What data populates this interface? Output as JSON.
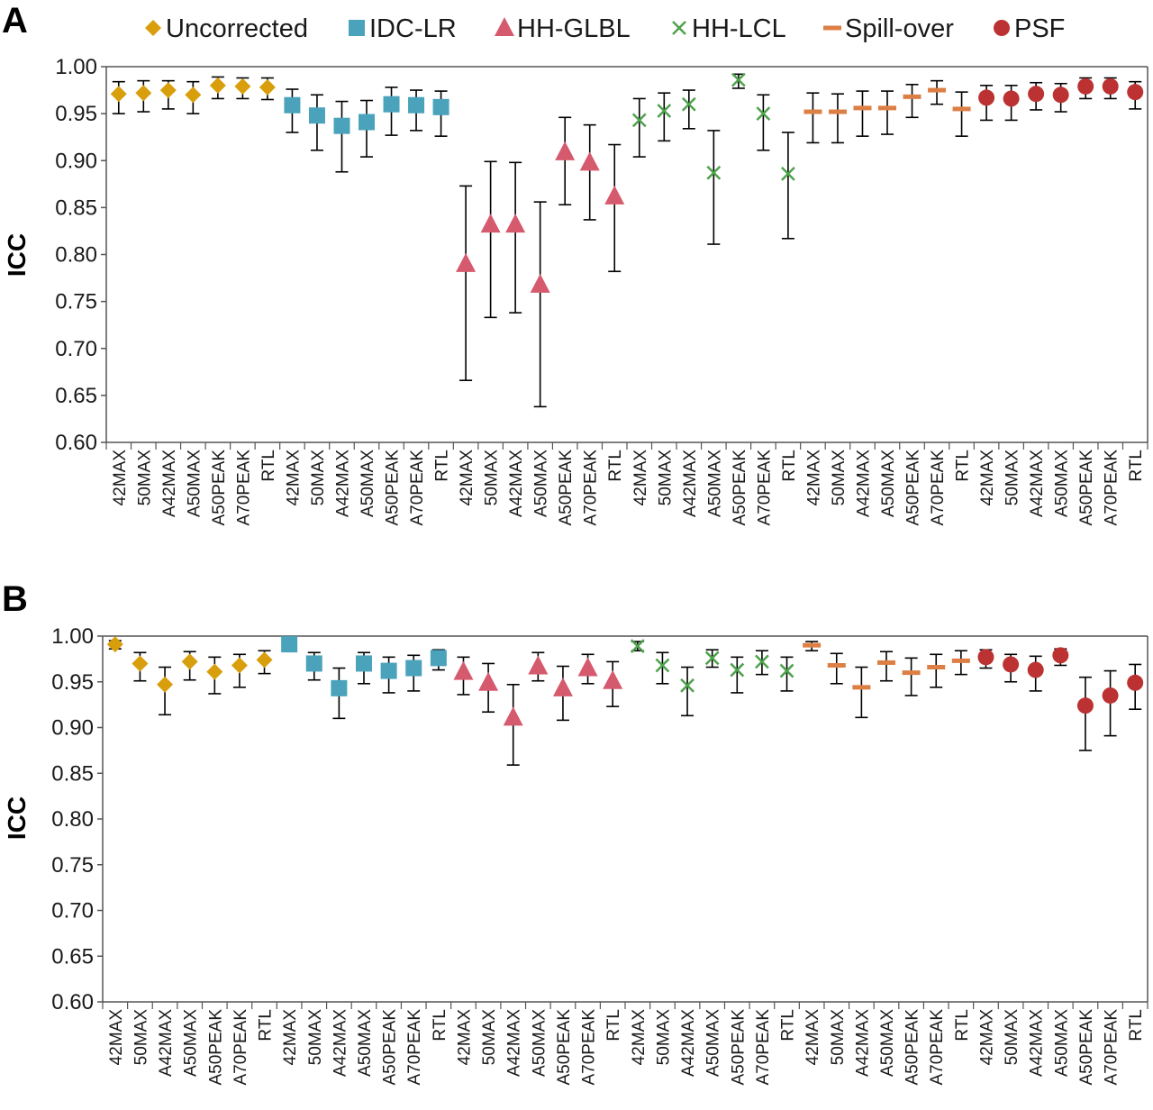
{
  "colors": {
    "Uncorrected": "#d89e0c",
    "IDC-LR": "#4aa3bb",
    "HH-GLBL": "#d65a6e",
    "HH-LCL": "#4ea24c",
    "Spill-over": "#dd7f45",
    "PSF": "#bc3232",
    "errorbar": "#000000",
    "axis": "#555555"
  },
  "legend": [
    {
      "name": "Uncorrected",
      "marker": "diamond",
      "color_key": "Uncorrected"
    },
    {
      "name": "IDC-LR",
      "marker": "square",
      "color_key": "IDC-LR"
    },
    {
      "name": "HH-GLBL",
      "marker": "triangle",
      "color_key": "HH-GLBL"
    },
    {
      "name": "HH-LCL",
      "marker": "x",
      "color_key": "HH-LCL"
    },
    {
      "name": "Spill-over",
      "marker": "dash",
      "color_key": "Spill-over"
    },
    {
      "name": "PSF",
      "marker": "circle",
      "color_key": "PSF"
    }
  ],
  "chart_data": [
    {
      "panel": "A",
      "type": "scatter",
      "ylabel": "ICC",
      "ylim": [
        0.6,
        1.0
      ],
      "yticks": [
        "0.60",
        "0.65",
        "0.70",
        "0.75",
        "0.80",
        "0.85",
        "0.90",
        "0.95",
        "1.00"
      ],
      "categories": [
        "42MAX",
        "50MAX",
        "A42MAX",
        "A50MAX",
        "A50PEAK",
        "A70PEAK",
        "RTL"
      ],
      "series": [
        {
          "name": "Uncorrected",
          "values": [
            0.971,
            0.972,
            0.975,
            0.97,
            0.98,
            0.979,
            0.978
          ],
          "lower": [
            0.95,
            0.952,
            0.955,
            0.95,
            0.966,
            0.966,
            0.965
          ],
          "upper": [
            0.984,
            0.985,
            0.985,
            0.984,
            0.989,
            0.988,
            0.988
          ]
        },
        {
          "name": "IDC-LR",
          "values": [
            0.959,
            0.948,
            0.937,
            0.941,
            0.96,
            0.959,
            0.957
          ],
          "lower": [
            0.93,
            0.911,
            0.888,
            0.904,
            0.927,
            0.932,
            0.926
          ],
          "upper": [
            0.976,
            0.97,
            0.963,
            0.964,
            0.978,
            0.975,
            0.974
          ]
        },
        {
          "name": "HH-GLBL",
          "values": [
            0.79,
            0.832,
            0.832,
            0.768,
            0.909,
            0.898,
            0.862
          ],
          "lower": [
            0.666,
            0.733,
            0.738,
            0.638,
            0.853,
            0.837,
            0.782
          ],
          "upper": [
            0.873,
            0.899,
            0.898,
            0.856,
            0.946,
            0.938,
            0.917
          ]
        },
        {
          "name": "HH-LCL",
          "values": [
            0.943,
            0.953,
            0.96,
            0.887,
            0.986,
            0.95,
            0.886
          ],
          "lower": [
            0.904,
            0.921,
            0.934,
            0.811,
            0.977,
            0.911,
            0.817
          ],
          "upper": [
            0.966,
            0.972,
            0.975,
            0.932,
            0.992,
            0.97,
            0.93
          ]
        },
        {
          "name": "Spill-over",
          "values": [
            0.952,
            0.952,
            0.956,
            0.956,
            0.968,
            0.975,
            0.955
          ],
          "lower": [
            0.919,
            0.919,
            0.926,
            0.928,
            0.946,
            0.96,
            0.926
          ],
          "upper": [
            0.972,
            0.971,
            0.974,
            0.974,
            0.981,
            0.985,
            0.973
          ]
        },
        {
          "name": "PSF",
          "values": [
            0.967,
            0.966,
            0.971,
            0.97,
            0.979,
            0.979,
            0.973
          ],
          "lower": [
            0.943,
            0.943,
            0.954,
            0.952,
            0.966,
            0.966,
            0.955
          ],
          "upper": [
            0.98,
            0.98,
            0.983,
            0.982,
            0.988,
            0.988,
            0.984
          ]
        }
      ]
    },
    {
      "panel": "B",
      "type": "scatter",
      "ylabel": "ICC",
      "ylim": [
        0.6,
        1.0
      ],
      "yticks": [
        "0.60",
        "0.65",
        "0.70",
        "0.75",
        "0.80",
        "0.85",
        "0.90",
        "0.95",
        "1.00"
      ],
      "categories": [
        "42MAX",
        "50MAX",
        "A42MAX",
        "A50MAX",
        "A50PEAK",
        "A70PEAK",
        "RTL"
      ],
      "series": [
        {
          "name": "Uncorrected",
          "values": [
            0.991,
            0.97,
            0.947,
            0.972,
            0.961,
            0.968,
            0.974
          ],
          "lower": [
            0.986,
            0.951,
            0.914,
            0.952,
            0.937,
            0.944,
            0.959
          ],
          "upper": [
            0.995,
            0.982,
            0.966,
            0.983,
            0.977,
            0.98,
            0.984
          ]
        },
        {
          "name": "IDC-LR",
          "values": [
            0.991,
            0.97,
            0.943,
            0.97,
            0.962,
            0.965,
            0.976
          ],
          "lower": [
            0.986,
            0.952,
            0.91,
            0.948,
            0.938,
            0.94,
            0.963
          ],
          "upper": [
            0.995,
            0.982,
            0.965,
            0.982,
            0.977,
            0.979,
            0.985
          ]
        },
        {
          "name": "HH-GLBL",
          "values": [
            0.961,
            0.949,
            0.911,
            0.967,
            0.943,
            0.965,
            0.951
          ],
          "lower": [
            0.936,
            0.917,
            0.859,
            0.951,
            0.908,
            0.948,
            0.923
          ],
          "upper": [
            0.977,
            0.97,
            0.947,
            0.982,
            0.967,
            0.98,
            0.972
          ]
        },
        {
          "name": "HH-LCL",
          "values": [
            0.989,
            0.968,
            0.946,
            0.976,
            0.963,
            0.972,
            0.962
          ],
          "lower": [
            0.984,
            0.948,
            0.913,
            0.966,
            0.938,
            0.958,
            0.94
          ],
          "upper": [
            0.994,
            0.982,
            0.966,
            0.985,
            0.977,
            0.984,
            0.977
          ]
        },
        {
          "name": "Spill-over",
          "values": [
            0.99,
            0.968,
            0.944,
            0.971,
            0.96,
            0.966,
            0.973
          ],
          "lower": [
            0.984,
            0.948,
            0.911,
            0.951,
            0.935,
            0.944,
            0.958
          ],
          "upper": [
            0.994,
            0.981,
            0.966,
            0.983,
            0.976,
            0.98,
            0.984
          ]
        },
        {
          "name": "PSF",
          "values": [
            0.977,
            0.969,
            0.963,
            0.979,
            0.924,
            0.935,
            0.949
          ],
          "lower": [
            0.965,
            0.95,
            0.94,
            0.968,
            0.875,
            0.891,
            0.92
          ],
          "upper": [
            0.985,
            0.98,
            0.978,
            0.986,
            0.955,
            0.962,
            0.969
          ]
        }
      ]
    }
  ]
}
